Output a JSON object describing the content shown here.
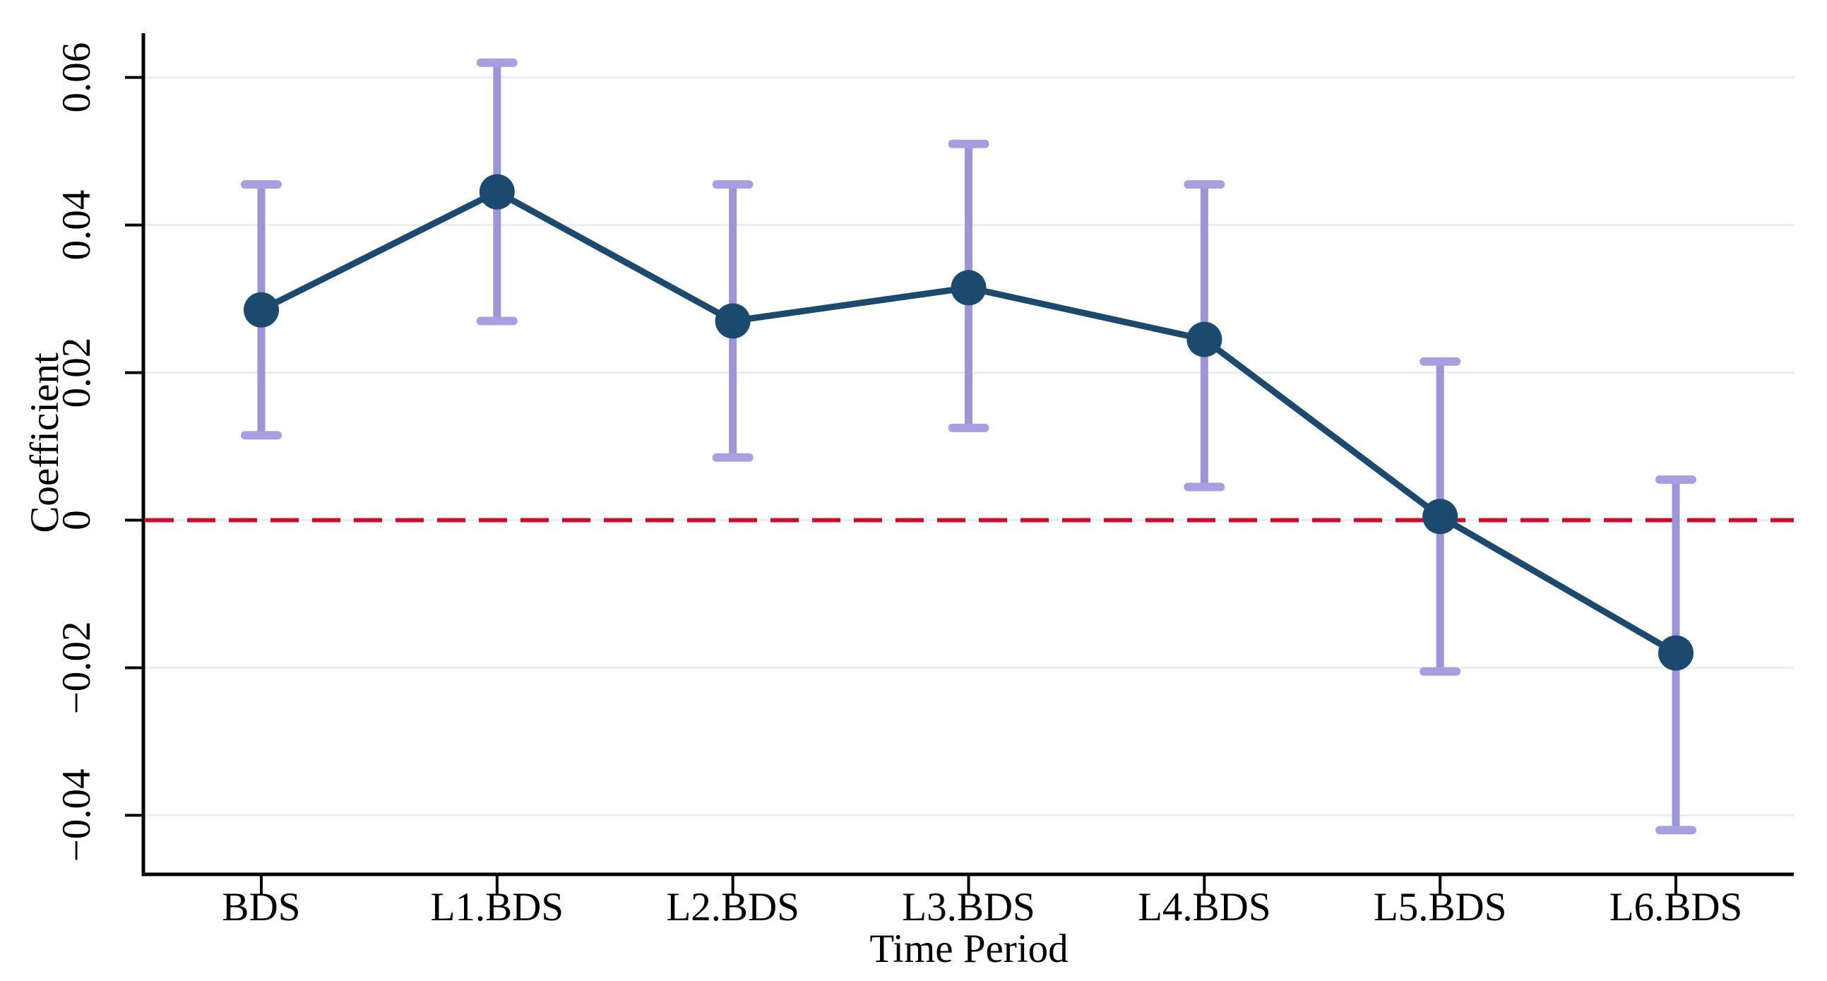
{
  "figure": {
    "y_axis_title": "Coefficient",
    "x_axis_title": "Time Period",
    "colors": {
      "series": "#1c4a6e",
      "error_bar": "#9e95d8",
      "error_cap": "#a79fe0",
      "zero_line": "#c8102e",
      "gridline": "#e8eef1",
      "axis": "#000000",
      "background": "#ffffff",
      "text": "#000000"
    }
  },
  "chart_data": {
    "type": "line",
    "subtype": "coefficient-plot-with-95ci-error-bars",
    "title": "",
    "xlabel": "Time Period",
    "ylabel": "Coefficient",
    "categories": [
      "BDS",
      "L1.BDS",
      "L2.BDS",
      "L3.BDS",
      "L4.BDS",
      "L5.BDS",
      "L6.BDS"
    ],
    "series": [
      {
        "name": "Coefficient",
        "values": [
          0.0285,
          0.0445,
          0.027,
          0.0315,
          0.0245,
          0.0005,
          -0.018
        ],
        "ci_low": [
          0.0115,
          0.027,
          0.0085,
          0.0125,
          0.0045,
          -0.0205,
          -0.042
        ],
        "ci_high": [
          0.0455,
          0.062,
          0.0455,
          0.051,
          0.0455,
          0.0215,
          0.0055
        ]
      }
    ],
    "y_ticks": [
      0.06,
      0.04,
      0.02,
      0,
      -0.02,
      -0.04
    ],
    "y_tick_labels": [
      "0.06",
      "0.04",
      "0.02",
      "0",
      "−0.02",
      "−0.04"
    ],
    "ylim": [
      -0.048,
      0.066
    ],
    "reference_line": 0,
    "grid": true,
    "legend_position": "none"
  }
}
